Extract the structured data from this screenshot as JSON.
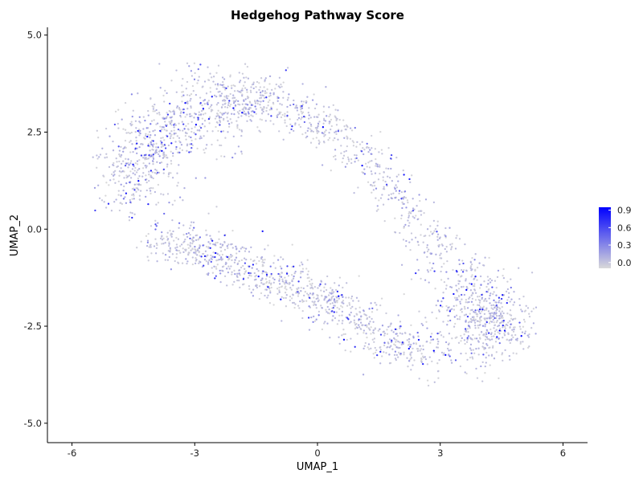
{
  "chart_data": {
    "type": "scatter",
    "title": "Hedgehog Pathway Score",
    "xlabel": "UMAP_1",
    "ylabel": "UMAP_2",
    "xlim": [
      -6.6,
      6.6
    ],
    "ylim": [
      -5.5,
      5.2
    ],
    "xticks": [
      -6,
      -3,
      0,
      3,
      6
    ],
    "xtick_labels": [
      "-6",
      "-3",
      "0",
      "3",
      "6"
    ],
    "yticks": [
      5.0,
      2.5,
      0.0,
      -2.5,
      -5.0
    ],
    "ytick_labels": [
      "5.0",
      "2.5",
      "0.0",
      "-2.5",
      "-5.0"
    ],
    "grid": false,
    "legend": {
      "placement": "right",
      "type": "colorbar",
      "ticks": [
        0.9,
        0.6,
        0.3,
        0.0
      ],
      "tick_labels": [
        "0.9",
        "0.6",
        "0.3",
        "0.0"
      ],
      "range": [
        -0.1,
        0.95
      ],
      "low_color": "#d9d9d9",
      "high_color": "#0000ff"
    },
    "point_count": 3000,
    "point_colors": {
      "low": "#d9d9d9",
      "high": "#0000ff"
    },
    "distribution_note": "Cells form a curved band from the upper-left (around x=-4, y=1.5) through the top (x=-1.5, y=3.5) down to a dense lower-right cluster (x=4, y=-2.7); scores are mostly low (0.0–0.3) with scattered higher-scoring cells."
  }
}
